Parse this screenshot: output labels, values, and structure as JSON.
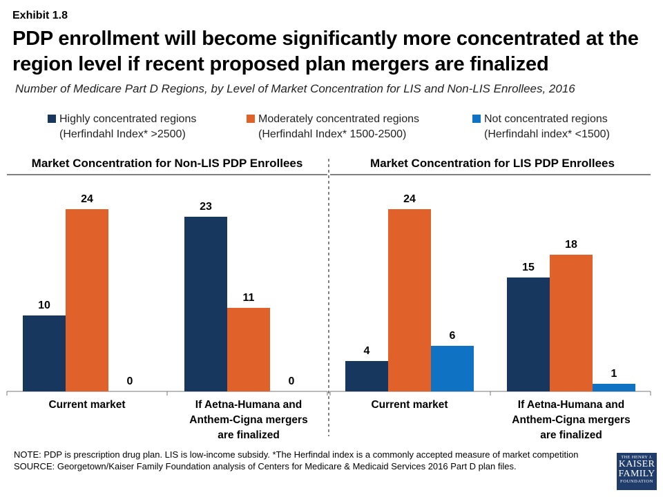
{
  "exhibit": "Exhibit 1.8",
  "title": "PDP enrollment will become significantly more concentrated at the region level if recent proposed plan mergers are finalized",
  "subtitle": "Number of Medicare Part D Regions, by Level of Market Concentration for LIS and Non-LIS Enrollees, 2016",
  "legend": [
    {
      "line1": "Highly concentrated regions",
      "line2": "(Herfindahl Index* >2500)",
      "color": "#17375e"
    },
    {
      "line1": "Moderately concentrated regions",
      "line2": "(Herfindahl Index* 1500-2500)",
      "color": "#e0622a"
    },
    {
      "line1": "Not concentrated regions",
      "line2": "(Herfindahl index* <1500)",
      "color": "#0f72c2"
    }
  ],
  "chart_data": [
    {
      "type": "bar",
      "title": "Market Concentration for Non-LIS PDP Enrollees",
      "categories": [
        [
          "Current market"
        ],
        [
          "If Aetna-Humana and",
          "Anthem-Cigna mergers",
          "are finalized"
        ]
      ],
      "series": [
        {
          "name": "Highly concentrated regions",
          "values": [
            10,
            23
          ],
          "color": "#17375e"
        },
        {
          "name": "Moderately concentrated regions",
          "values": [
            24,
            11
          ],
          "color": "#e0622a"
        },
        {
          "name": "Not concentrated regions",
          "values": [
            0,
            0
          ],
          "color": "#0f72c2"
        }
      ],
      "ylim": [
        0,
        24
      ]
    },
    {
      "type": "bar",
      "title": "Market Concentration for LIS PDP Enrollees",
      "categories": [
        [
          "Current market"
        ],
        [
          "If Aetna-Humana and",
          "Anthem-Cigna mergers",
          "are finalized"
        ]
      ],
      "series": [
        {
          "name": "Highly concentrated regions",
          "values": [
            4,
            15
          ],
          "color": "#17375e"
        },
        {
          "name": "Moderately concentrated regions",
          "values": [
            24,
            18
          ],
          "color": "#e0622a"
        },
        {
          "name": "Not concentrated regions",
          "values": [
            6,
            1
          ],
          "color": "#0f72c2"
        }
      ],
      "ylim": [
        0,
        24
      ]
    }
  ],
  "note": "NOTE: PDP is prescription drug plan. LIS is low-income subsidy. *The Herfindal index is a commonly accepted measure of market competition",
  "source": "SOURCE: Georgetown/Kaiser Family Foundation analysis of Centers for Medicare & Medicaid Services 2016 Part D plan files.",
  "logo": {
    "line1": "THE HENRY J.",
    "line2": "KAISER",
    "line3": "FAMILY",
    "line4": "FOUNDATION"
  }
}
